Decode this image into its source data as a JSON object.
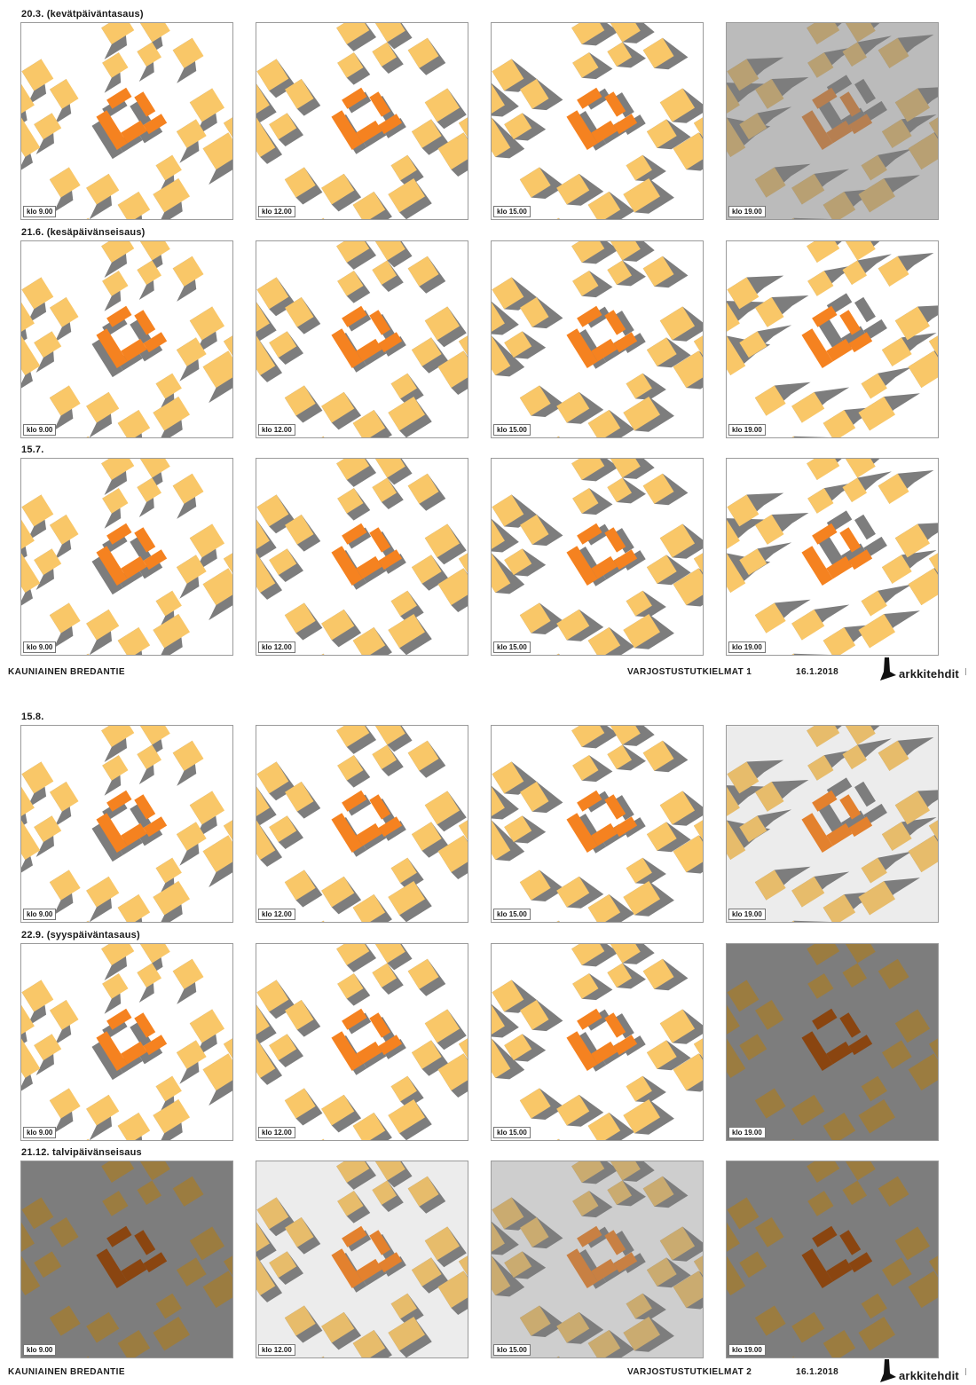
{
  "sheets": [
    {
      "rows": [
        {
          "label": "20.3. (kevätpäiväntasaus)",
          "times": [
            "klo 9.00",
            "klo 12.00",
            "klo 15.00",
            "klo 19.00"
          ]
        },
        {
          "label": "21.6. (kesäpäivänseisaus)",
          "times": [
            "klo 9.00",
            "klo 12.00",
            "klo 15.00",
            "klo 19.00"
          ]
        },
        {
          "label": "15.7.",
          "times": [
            "klo 9.00",
            "klo 12.00",
            "klo 15.00",
            "klo 19.00"
          ]
        }
      ],
      "footer": {
        "project": "KAUNIAINEN BREDANTIE",
        "sheet_title": "VARJOSTUSTUTKIELMAT 1",
        "date": "16.1.2018",
        "logo_text": "arkkitehdit"
      }
    },
    {
      "rows": [
        {
          "label": "15.8.",
          "times": [
            "klo 9.00",
            "klo 12.00",
            "klo 15.00",
            "klo 19.00"
          ]
        },
        {
          "label": "22.9. (syyspäiväntasaus)",
          "times": [
            "klo 9.00",
            "klo 12.00",
            "klo 15.00",
            "klo 19.00"
          ]
        },
        {
          "label": "21.12. talvipäivänseisaus",
          "times": [
            "klo 9.00",
            "klo 12.00",
            "klo 15.00",
            "klo 19.00"
          ]
        }
      ],
      "footer": {
        "project": "KAUNIAINEN BREDANTIE",
        "sheet_title": "VARJOSTUSTUTKIELMAT 2",
        "date": "16.1.2018",
        "logo_text": "arkkitehdit"
      }
    }
  ],
  "colors": {
    "shadow": "#7d7d7d",
    "neighbor_building": "#f9c768",
    "project_building": "#f58220",
    "project_building_shaded": "#8a4510",
    "neighbor_building_shaded": "#9b7c40",
    "ground": "#ffffff"
  },
  "shade_levels": [
    [
      0.0,
      0.0,
      0.0,
      0.7
    ],
    [
      0.0,
      0.0,
      0.0,
      0.0
    ],
    [
      0.0,
      0.0,
      0.0,
      0.0
    ],
    [
      0.0,
      0.0,
      0.0,
      0.2
    ],
    [
      0.0,
      0.0,
      0.0,
      1.0
    ],
    [
      1.0,
      0.2,
      0.5,
      1.0
    ]
  ]
}
